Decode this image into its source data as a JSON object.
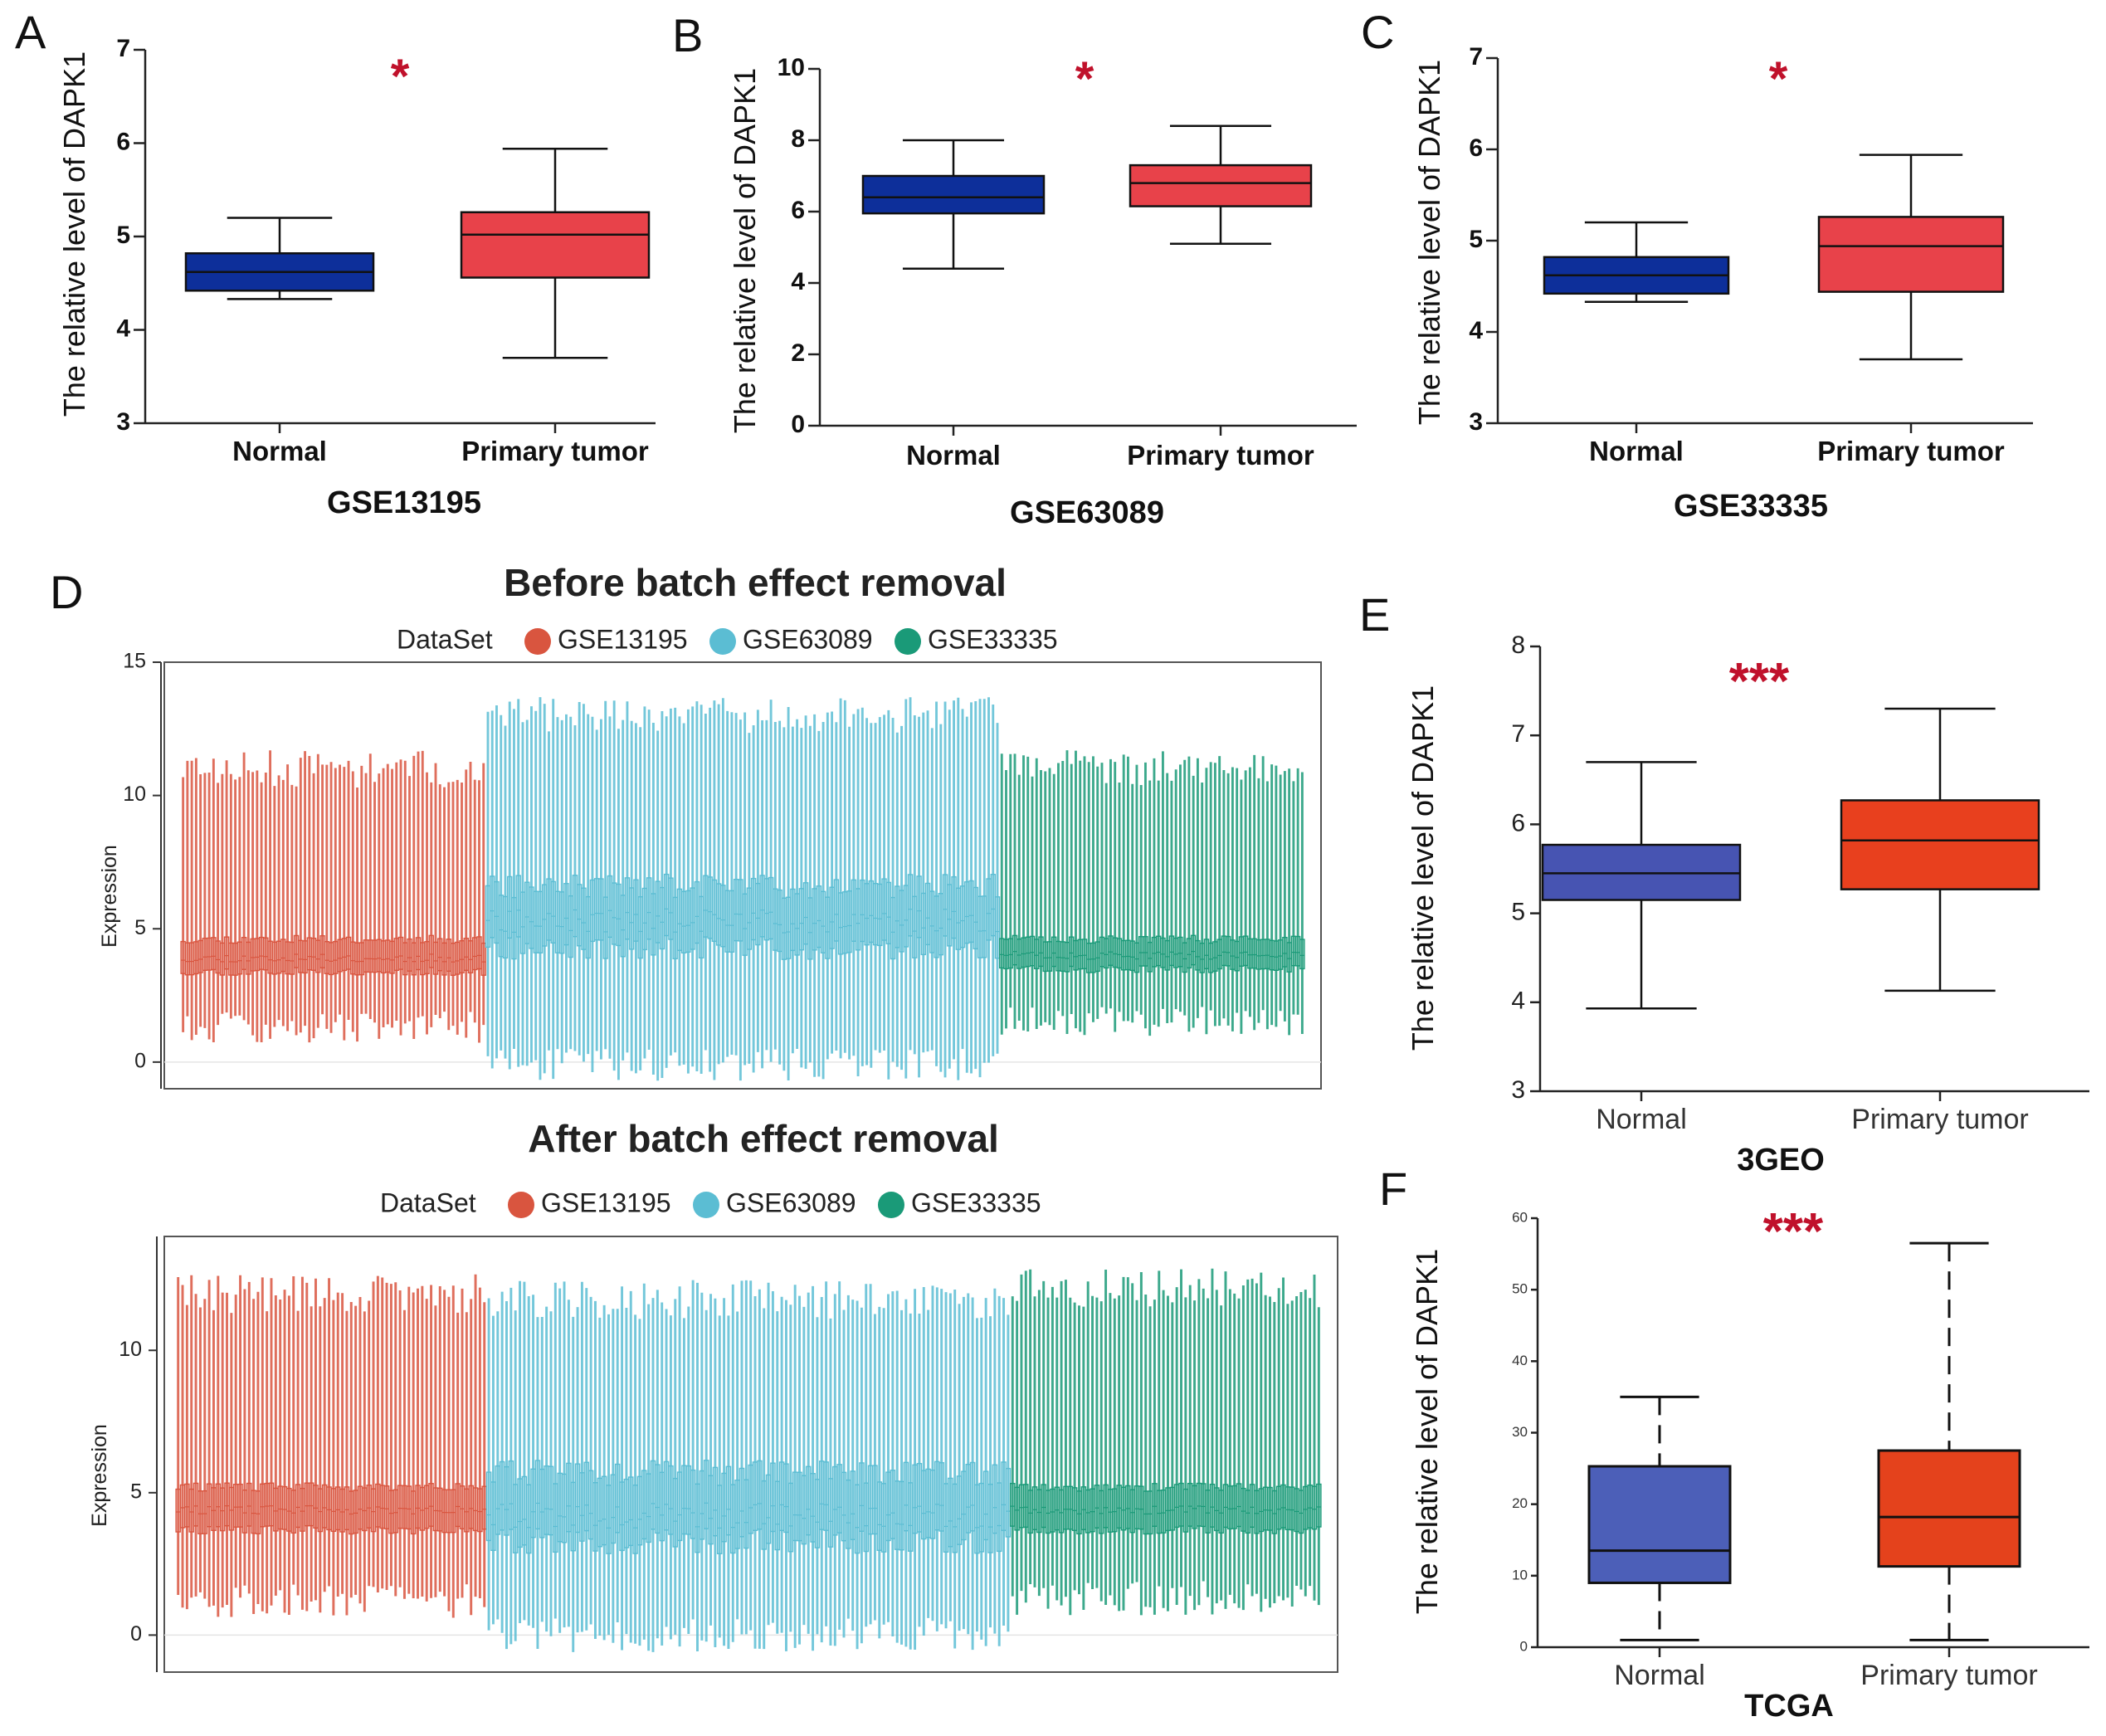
{
  "chart_data": [
    {
      "id": "A",
      "type": "box",
      "letter": "A",
      "title": "",
      "xlabel": "GSE13195",
      "ylabel": "The relative level of DAPK1",
      "ylim": [
        3,
        7
      ],
      "yticks": [
        "3",
        "4",
        "5",
        "6",
        "7"
      ],
      "significance": "*",
      "categories": [
        "Normal",
        "Primary tumor"
      ],
      "boxes": [
        {
          "min": 4.33,
          "q1": 4.42,
          "median": 4.62,
          "q3": 4.82,
          "max": 5.2,
          "color": "#0d2f9a"
        },
        {
          "min": 3.7,
          "q1": 4.56,
          "median": 5.02,
          "q3": 5.26,
          "max": 5.94,
          "color": "#e8424a"
        }
      ]
    },
    {
      "id": "B",
      "type": "box",
      "letter": "B",
      "title": "",
      "xlabel": "GSE63089",
      "ylabel": "The relative level of DAPK1",
      "ylim": [
        0,
        10
      ],
      "yticks": [
        "0",
        "2",
        "4",
        "6",
        "8",
        "10"
      ],
      "significance": "*",
      "categories": [
        "Normal",
        "Primary tumor"
      ],
      "boxes": [
        {
          "min": 4.4,
          "q1": 5.95,
          "median": 6.4,
          "q3": 7.0,
          "max": 8.0,
          "color": "#0d2f9a"
        },
        {
          "min": 5.1,
          "q1": 6.15,
          "median": 6.8,
          "q3": 7.3,
          "max": 8.4,
          "color": "#e8424a"
        }
      ]
    },
    {
      "id": "C",
      "type": "box",
      "letter": "C",
      "title": "",
      "xlabel": "GSE33335",
      "ylabel": "The relative level of DAPK1",
      "ylim": [
        3,
        7
      ],
      "yticks": [
        "3",
        "4",
        "5",
        "6",
        "7"
      ],
      "significance": "*",
      "categories": [
        "Normal",
        "Primary tumor"
      ],
      "boxes": [
        {
          "min": 4.33,
          "q1": 4.42,
          "median": 4.62,
          "q3": 4.82,
          "max": 5.2,
          "color": "#0d2f9a"
        },
        {
          "min": 3.7,
          "q1": 4.44,
          "median": 4.94,
          "q3": 5.26,
          "max": 5.94,
          "color": "#e8424a"
        }
      ]
    },
    {
      "id": "D1",
      "type": "box-series",
      "letter": "D",
      "title": "Before batch effect removal",
      "ylabel": "Expression",
      "ylim": [
        -1,
        15
      ],
      "yticks": [
        "0",
        "5",
        "10",
        "15"
      ],
      "legend_title": "DataSet",
      "groups": [
        {
          "name": "GSE13195",
          "color": "#d9553f",
          "count": 70,
          "q1": 3.4,
          "q3": 4.6,
          "median": 3.9,
          "whisker_low": 1.3,
          "whisker_high": 11.0
        },
        {
          "name": "GSE63089",
          "color": "#5bbdd3",
          "count": 118,
          "q1": 4.3,
          "q3": 6.6,
          "median": 5.3,
          "whisker_low": -0.1,
          "whisker_high": 13.0
        },
        {
          "name": "GSE33335",
          "color": "#1a9a78",
          "count": 70,
          "q1": 3.5,
          "q3": 4.6,
          "median": 4.0,
          "whisker_low": 1.5,
          "whisker_high": 11.0
        }
      ]
    },
    {
      "id": "D2",
      "type": "box-series",
      "letter": "",
      "title": "After batch effect removal",
      "ylabel": "Expression",
      "ylim": [
        -1.3,
        14
      ],
      "yticks": [
        "0",
        "5",
        "10"
      ],
      "legend_title": "DataSet",
      "groups": [
        {
          "name": "GSE13195",
          "color": "#d9553f",
          "count": 70,
          "q1": 3.7,
          "q3": 5.2,
          "median": 4.4,
          "whisker_low": 1.2,
          "whisker_high": 12.0
        },
        {
          "name": "GSE63089",
          "color": "#5bbdd3",
          "count": 118,
          "q1": 3.3,
          "q3": 5.7,
          "median": 4.2,
          "whisker_low": 0.0,
          "whisker_high": 11.8
        },
        {
          "name": "GSE33335",
          "color": "#1a9a78",
          "count": 70,
          "q1": 3.7,
          "q3": 5.2,
          "median": 4.4,
          "whisker_low": 1.3,
          "whisker_high": 12.2
        }
      ]
    },
    {
      "id": "E",
      "type": "box",
      "letter": "E",
      "title": "",
      "xlabel": "3GEO",
      "ylabel": "The relative level of DAPK1",
      "ylim": [
        3,
        8
      ],
      "yticks": [
        "3",
        "4",
        "5",
        "6",
        "7",
        "8"
      ],
      "significance": "***",
      "categories": [
        "Normal",
        "Primary tumor"
      ],
      "boxes": [
        {
          "min": 3.93,
          "q1": 5.15,
          "median": 5.45,
          "q3": 5.77,
          "max": 6.7,
          "color": "#4754b2"
        },
        {
          "min": 4.13,
          "q1": 5.27,
          "median": 5.82,
          "q3": 6.27,
          "max": 7.3,
          "color": "#e8401e"
        }
      ]
    },
    {
      "id": "F",
      "type": "box",
      "letter": "F",
      "title": "",
      "xlabel": "TCGA",
      "ylabel": "The relative level of DAPK1",
      "ylim": [
        0,
        60
      ],
      "yticks": [
        "0",
        "10",
        "20",
        "30",
        "40",
        "50",
        "60"
      ],
      "significance": "***",
      "categories": [
        "Normal",
        "Primary tumor"
      ],
      "boxes": [
        {
          "min": 1.0,
          "q1": 9.0,
          "median": 13.5,
          "q3": 25.3,
          "max": 35.0,
          "color": "#4c5fb8"
        },
        {
          "min": 1.0,
          "q1": 11.3,
          "median": 18.2,
          "q3": 27.5,
          "max": 56.5,
          "color": "#e4421c"
        }
      ]
    }
  ]
}
